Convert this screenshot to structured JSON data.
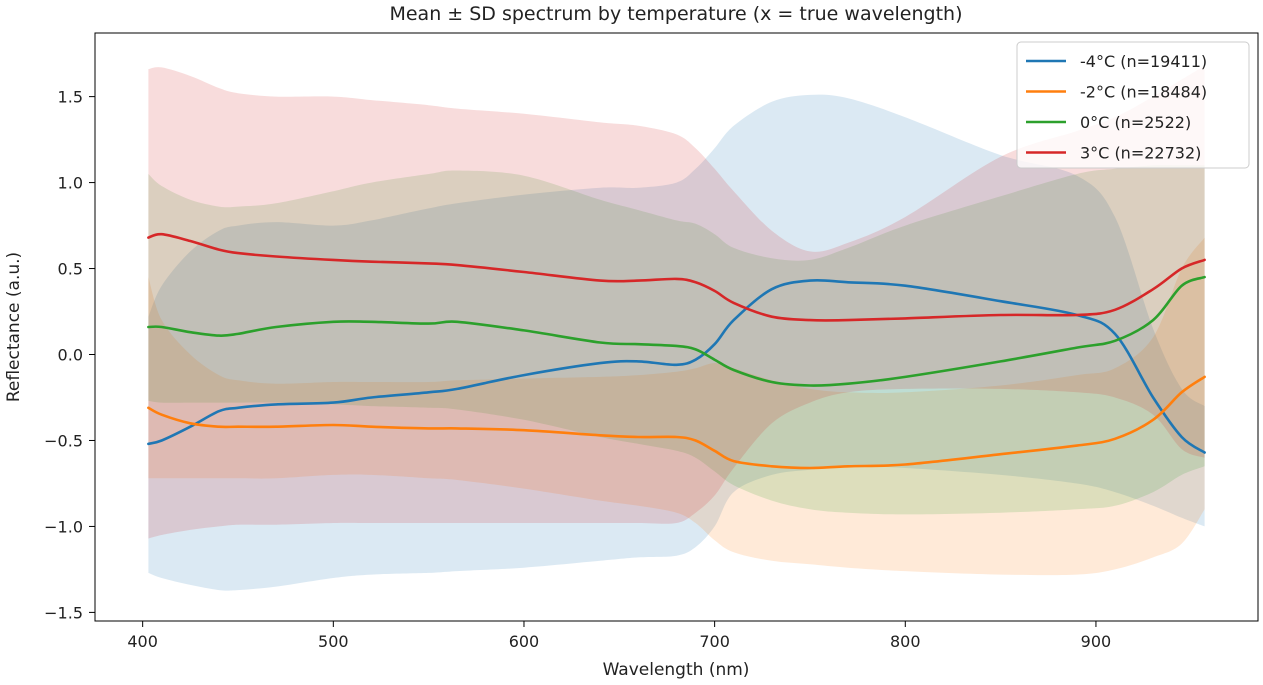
{
  "chart_data": {
    "type": "line",
    "title": "Mean ± SD spectrum by temperature (x = true wavelength)",
    "xlabel": "Wavelength (nm)",
    "ylabel": "Reflectance (a.u.)",
    "xlim": [
      375,
      985
    ],
    "ylim": [
      -1.55,
      1.87
    ],
    "xticks": [
      400,
      500,
      600,
      700,
      800,
      900
    ],
    "xtick_labels": [
      "400",
      "500",
      "600",
      "700",
      "800",
      "900"
    ],
    "yticks": [
      -1.5,
      -1.0,
      -0.5,
      0.0,
      0.5,
      1.0,
      1.5
    ],
    "ytick_labels": [
      "−1.5",
      "−1.0",
      "−0.5",
      "0.0",
      "0.5",
      "1.0",
      "1.5"
    ],
    "grid": false,
    "legend_position": "top-right",
    "x": [
      403,
      410,
      425,
      440,
      450,
      470,
      500,
      520,
      550,
      565,
      600,
      640,
      660,
      680,
      690,
      700,
      710,
      730,
      750,
      770,
      800,
      850,
      890,
      910,
      930,
      945,
      957
    ],
    "series": [
      {
        "name": "-4°C (n=19411)",
        "color": "#1f77b4",
        "band_opacity": 0.16,
        "mean": [
          -0.52,
          -0.5,
          -0.42,
          -0.33,
          -0.31,
          -0.29,
          -0.28,
          -0.25,
          -0.22,
          -0.2,
          -0.12,
          -0.05,
          -0.04,
          -0.06,
          -0.03,
          0.06,
          0.2,
          0.38,
          0.43,
          0.42,
          0.4,
          0.31,
          0.23,
          0.12,
          -0.25,
          -0.48,
          -0.57
        ],
        "lower": [
          -1.27,
          -1.3,
          -1.34,
          -1.37,
          -1.37,
          -1.35,
          -1.3,
          -1.28,
          -1.27,
          -1.26,
          -1.24,
          -1.2,
          -1.18,
          -1.17,
          -1.12,
          -1.0,
          -0.8,
          -0.7,
          -0.67,
          -0.65,
          -0.66,
          -0.7,
          -0.75,
          -0.8,
          -0.88,
          -0.95,
          -1.0
        ],
        "upper": [
          0.22,
          0.4,
          0.6,
          0.72,
          0.75,
          0.77,
          0.75,
          0.78,
          0.85,
          0.88,
          0.93,
          0.97,
          0.97,
          1.0,
          1.08,
          1.2,
          1.33,
          1.47,
          1.51,
          1.49,
          1.38,
          1.16,
          1.04,
          0.8,
          0.15,
          -0.2,
          -0.3
        ]
      },
      {
        "name": "-2°C (n=18484)",
        "color": "#ff7f0e",
        "band_opacity": 0.16,
        "mean": [
          -0.31,
          -0.35,
          -0.4,
          -0.42,
          -0.42,
          -0.42,
          -0.41,
          -0.42,
          -0.43,
          -0.43,
          -0.44,
          -0.47,
          -0.48,
          -0.48,
          -0.5,
          -0.56,
          -0.62,
          -0.65,
          -0.66,
          -0.65,
          -0.64,
          -0.58,
          -0.53,
          -0.49,
          -0.38,
          -0.22,
          -0.13
        ],
        "lower": [
          -0.72,
          -0.72,
          -0.72,
          -0.72,
          -0.72,
          -0.72,
          -0.7,
          -0.7,
          -0.72,
          -0.73,
          -0.78,
          -0.85,
          -0.88,
          -0.92,
          -0.98,
          -1.08,
          -1.15,
          -1.2,
          -1.22,
          -1.24,
          -1.26,
          -1.28,
          -1.28,
          -1.25,
          -1.18,
          -1.1,
          -0.9
        ],
        "upper": [
          0.45,
          0.2,
          0.0,
          -0.12,
          -0.15,
          -0.17,
          -0.16,
          -0.16,
          -0.16,
          -0.15,
          -0.14,
          -0.13,
          -0.12,
          -0.1,
          -0.08,
          -0.05,
          -0.08,
          -0.15,
          -0.2,
          -0.22,
          -0.22,
          -0.18,
          -0.12,
          -0.08,
          0.1,
          0.5,
          0.68
        ]
      },
      {
        "name": "0°C (n=2522)",
        "color": "#2ca02c",
        "band_opacity": 0.16,
        "mean": [
          0.16,
          0.16,
          0.13,
          0.11,
          0.12,
          0.16,
          0.19,
          0.19,
          0.18,
          0.19,
          0.14,
          0.07,
          0.06,
          0.05,
          0.03,
          -0.03,
          -0.09,
          -0.16,
          -0.18,
          -0.17,
          -0.13,
          -0.04,
          0.04,
          0.08,
          0.2,
          0.4,
          0.45
        ],
        "lower": [
          -0.27,
          -0.28,
          -0.28,
          -0.28,
          -0.28,
          -0.28,
          -0.29,
          -0.3,
          -0.31,
          -0.32,
          -0.38,
          -0.48,
          -0.52,
          -0.56,
          -0.6,
          -0.68,
          -0.76,
          -0.85,
          -0.9,
          -0.92,
          -0.93,
          -0.92,
          -0.9,
          -0.88,
          -0.8,
          -0.7,
          -0.65
        ],
        "upper": [
          1.05,
          0.98,
          0.9,
          0.86,
          0.86,
          0.88,
          0.95,
          1.0,
          1.05,
          1.07,
          1.04,
          0.9,
          0.84,
          0.78,
          0.76,
          0.7,
          0.62,
          0.56,
          0.55,
          0.62,
          0.75,
          0.92,
          1.05,
          1.08,
          1.1,
          1.1,
          1.1
        ]
      },
      {
        "name": "3°C (n=22732)",
        "color": "#d62728",
        "band_opacity": 0.16,
        "mean": [
          0.68,
          0.7,
          0.66,
          0.61,
          0.59,
          0.57,
          0.55,
          0.54,
          0.53,
          0.52,
          0.48,
          0.43,
          0.43,
          0.44,
          0.42,
          0.37,
          0.3,
          0.22,
          0.2,
          0.2,
          0.21,
          0.23,
          0.23,
          0.26,
          0.38,
          0.5,
          0.55
        ],
        "lower": [
          -1.07,
          -1.05,
          -1.02,
          -1.0,
          -0.99,
          -0.99,
          -0.98,
          -0.98,
          -0.98,
          -0.98,
          -0.98,
          -0.98,
          -0.98,
          -0.98,
          -0.92,
          -0.82,
          -0.66,
          -0.4,
          -0.28,
          -0.22,
          -0.2,
          -0.2,
          -0.22,
          -0.25,
          -0.35,
          -0.55,
          -0.6
        ],
        "upper": [
          1.66,
          1.67,
          1.62,
          1.55,
          1.52,
          1.5,
          1.5,
          1.48,
          1.45,
          1.43,
          1.4,
          1.35,
          1.33,
          1.28,
          1.2,
          1.08,
          0.95,
          0.72,
          0.6,
          0.65,
          0.8,
          1.15,
          1.3,
          1.38,
          1.5,
          1.6,
          1.68
        ]
      }
    ]
  }
}
